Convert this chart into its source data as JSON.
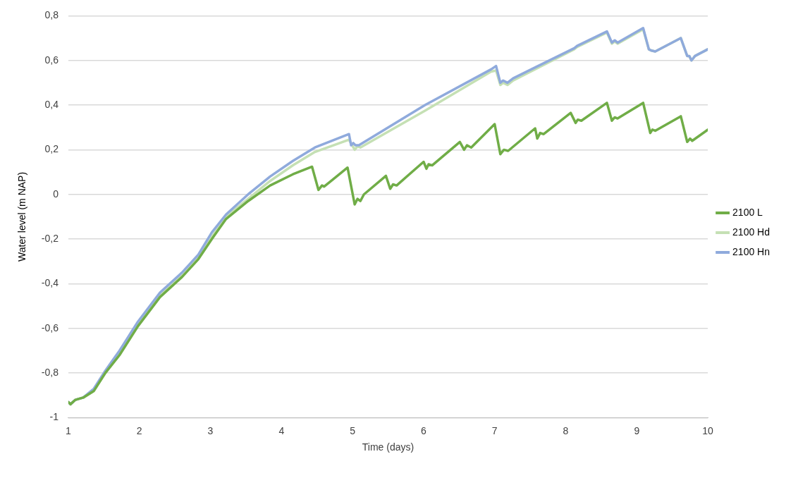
{
  "chart_data": {
    "type": "line",
    "xlabel": "Time (days)",
    "ylabel": "Water level (m NAP)",
    "xlim": [
      1,
      10
    ],
    "xticks": [
      1,
      2,
      3,
      4,
      5,
      6,
      7,
      8,
      9,
      10
    ],
    "ylim": [
      -1,
      0.8
    ],
    "yticks": [
      {
        "value": -1,
        "label": "-1"
      },
      {
        "value": -0.8,
        "label": "-0,8"
      },
      {
        "value": -0.6,
        "label": "-0,6"
      },
      {
        "value": -0.4,
        "label": "-0,4"
      },
      {
        "value": -0.2,
        "label": "-0,2"
      },
      {
        "value": 0,
        "label": "0"
      },
      {
        "value": 0.2,
        "label": "0,2"
      },
      {
        "value": 0.4,
        "label": "0,4"
      },
      {
        "value": 0.6,
        "label": "0,6"
      },
      {
        "value": 0.8,
        "label": "0,8"
      }
    ],
    "grid": "y",
    "legend": "right",
    "marker": "none",
    "line_style": "solid",
    "series": [
      {
        "name": "2100 L",
        "color": "#70ad47",
        "x": [
          1,
          1.03,
          1.1,
          1.21,
          1.36,
          1.52,
          1.72,
          1.98,
          2.29,
          2.6,
          2.83,
          3.02,
          3.22,
          3.53,
          3.84,
          4.16,
          4.43,
          4.52,
          4.57,
          4.6,
          4.93,
          5.03,
          5.07,
          5.11,
          5.16,
          5.47,
          5.53,
          5.57,
          5.62,
          6.0,
          6.04,
          6.07,
          6.12,
          6.51,
          6.57,
          6.61,
          6.67,
          7.0,
          7.08,
          7.13,
          7.19,
          7.57,
          7.6,
          7.64,
          7.69,
          8.07,
          8.14,
          8.17,
          8.22,
          8.58,
          8.65,
          8.69,
          8.73,
          9.09,
          9.19,
          9.22,
          9.26,
          9.62,
          9.71,
          9.75,
          9.78,
          10
        ],
        "values": [
          -0.93,
          -0.94,
          -0.92,
          -0.91,
          -0.88,
          -0.8,
          -0.72,
          -0.59,
          -0.46,
          -0.37,
          -0.29,
          -0.2,
          -0.11,
          -0.03,
          0.04,
          0.09,
          0.124,
          0.02,
          0.04,
          0.035,
          0.12,
          -0.045,
          -0.02,
          -0.03,
          0.0,
          0.083,
          0.025,
          0.045,
          0.04,
          0.146,
          0.115,
          0.135,
          0.13,
          0.235,
          0.2,
          0.22,
          0.21,
          0.315,
          0.18,
          0.2,
          0.195,
          0.296,
          0.25,
          0.275,
          0.27,
          0.365,
          0.32,
          0.335,
          0.33,
          0.41,
          0.33,
          0.345,
          0.34,
          0.41,
          0.275,
          0.29,
          0.285,
          0.35,
          0.235,
          0.25,
          0.24,
          0.29
        ]
      },
      {
        "name": "2100 Hd",
        "color": "#c5e0b4",
        "x": [
          1,
          1.03,
          1.1,
          1.21,
          1.36,
          1.52,
          1.72,
          1.98,
          2.29,
          2.6,
          2.83,
          3.02,
          3.22,
          3.53,
          3.84,
          4.16,
          4.47,
          4.95,
          5.03,
          5.07,
          5.11,
          6.02,
          6.95,
          7.02,
          7.08,
          7.12,
          7.18,
          7.26,
          8.12,
          8.16,
          8.58,
          8.65,
          8.69,
          8.73,
          9.09,
          9.17,
          9.2,
          9.26,
          9.62,
          9.71,
          9.74,
          9.77,
          9.82,
          10
        ],
        "values": [
          -0.93,
          -0.94,
          -0.92,
          -0.91,
          -0.88,
          -0.8,
          -0.71,
          -0.58,
          -0.45,
          -0.36,
          -0.28,
          -0.19,
          -0.1,
          -0.02,
          0.06,
          0.13,
          0.19,
          0.245,
          0.2,
          0.215,
          0.21,
          0.375,
          0.55,
          0.555,
          0.49,
          0.5,
          0.49,
          0.51,
          0.65,
          0.66,
          0.725,
          0.675,
          0.685,
          0.675,
          0.74,
          0.65,
          0.645,
          0.64,
          0.7,
          0.62,
          0.62,
          0.6,
          0.62,
          0.65
        ]
      },
      {
        "name": "2100 Hn",
        "color": "#8faadc",
        "x": [
          1,
          1.03,
          1.1,
          1.21,
          1.36,
          1.52,
          1.72,
          1.98,
          2.29,
          2.6,
          2.83,
          3.02,
          3.22,
          3.53,
          3.84,
          4.16,
          4.47,
          4.95,
          4.98,
          5.01,
          5.04,
          5.09,
          6.02,
          6.95,
          7.02,
          7.08,
          7.12,
          7.18,
          7.26,
          8.12,
          8.16,
          8.58,
          8.65,
          8.69,
          8.73,
          9.09,
          9.17,
          9.2,
          9.26,
          9.62,
          9.71,
          9.74,
          9.77,
          9.82,
          10
        ],
        "values": [
          -0.93,
          -0.94,
          -0.92,
          -0.91,
          -0.87,
          -0.79,
          -0.7,
          -0.57,
          -0.44,
          -0.35,
          -0.27,
          -0.17,
          -0.09,
          0.0,
          0.08,
          0.15,
          0.21,
          0.27,
          0.22,
          0.23,
          0.22,
          0.22,
          0.4,
          0.56,
          0.575,
          0.5,
          0.51,
          0.5,
          0.52,
          0.655,
          0.665,
          0.73,
          0.68,
          0.69,
          0.68,
          0.745,
          0.65,
          0.645,
          0.64,
          0.7,
          0.62,
          0.62,
          0.6,
          0.62,
          0.65
        ]
      }
    ]
  }
}
